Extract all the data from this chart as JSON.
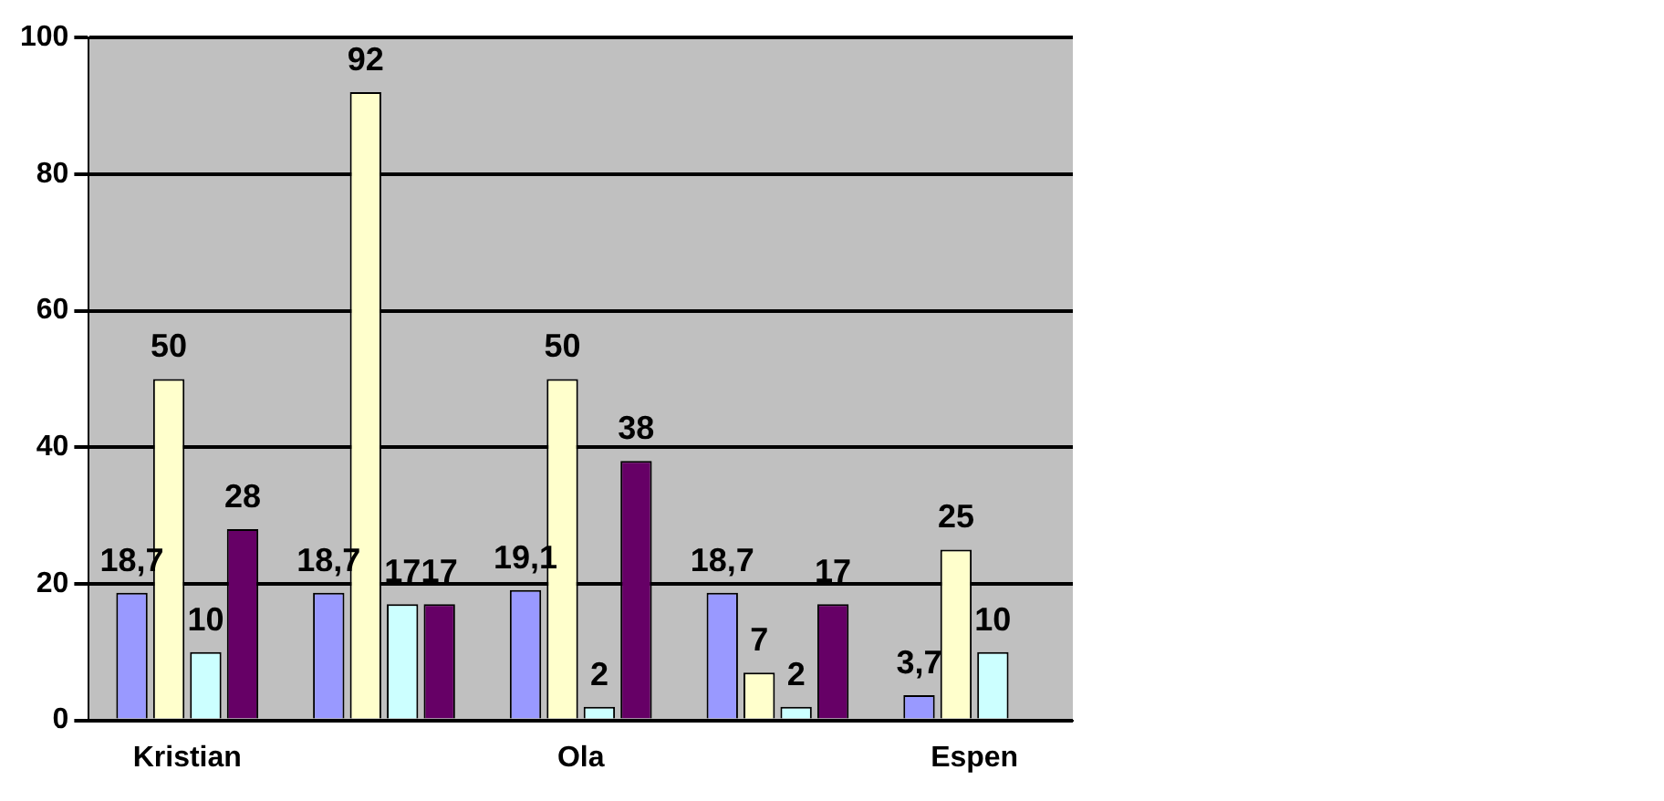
{
  "chart_data": {
    "type": "bar",
    "categories": [
      "Kristian",
      null,
      "Ola",
      null,
      "Espen"
    ],
    "series": [
      {
        "color": "#9999ff",
        "values": [
          18.7,
          18.7,
          19.1,
          18.7,
          3.7
        ],
        "value_labels": [
          "18,7",
          "18,7",
          "19,1",
          "18,7",
          "3,7"
        ]
      },
      {
        "color": "#ffffcc",
        "values": [
          50,
          92,
          50,
          7,
          25
        ],
        "value_labels": [
          "50",
          "92",
          "50",
          "7",
          "25"
        ]
      },
      {
        "color": "#ccffff",
        "values": [
          10,
          17,
          2,
          2,
          10
        ],
        "value_labels": [
          "10",
          "17",
          "2",
          "2",
          "10"
        ]
      },
      {
        "color": "#660066",
        "values": [
          28,
          17,
          38,
          17,
          null
        ],
        "value_labels": [
          "28",
          "17",
          "38",
          "17",
          null
        ]
      }
    ],
    "ylim": [
      0,
      100
    ],
    "yticks": [
      0,
      20,
      40,
      60,
      80,
      100
    ],
    "grid": "y"
  }
}
